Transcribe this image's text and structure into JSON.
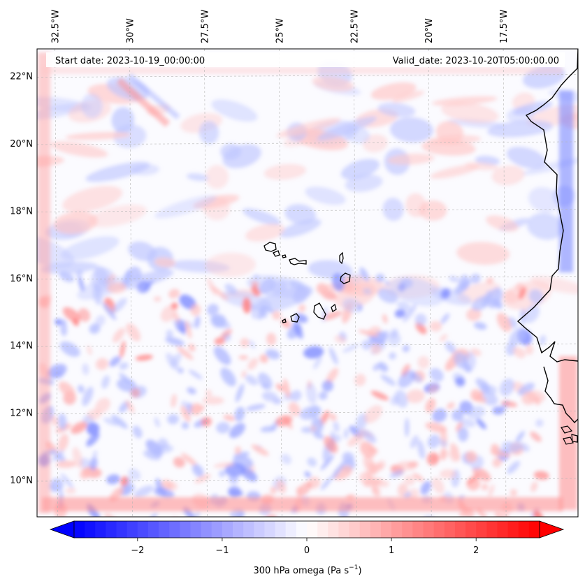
{
  "header": {
    "start_date": "Start date: 2023-10-19_00:00:00",
    "valid_date": "Valid_date: 2023-10-20T05:00:00.00"
  },
  "map": {
    "lon_range": [
      -33.1,
      -15.0
    ],
    "lat_range": [
      8.9,
      22.8
    ],
    "lon_ticks": [
      {
        "value": -32.5,
        "label": "32.5°W"
      },
      {
        "value": -30.0,
        "label": "30°W"
      },
      {
        "value": -27.5,
        "label": "27.5°W"
      },
      {
        "value": -25.0,
        "label": "25°W"
      },
      {
        "value": -22.5,
        "label": "22.5°W"
      },
      {
        "value": -20.0,
        "label": "20°W"
      },
      {
        "value": -17.5,
        "label": "17.5°W"
      }
    ],
    "lat_ticks": [
      {
        "value": 22,
        "label": "22°N"
      },
      {
        "value": 20,
        "label": "20°N"
      },
      {
        "value": 18,
        "label": "18°N"
      },
      {
        "value": 16,
        "label": "16°N"
      },
      {
        "value": 14,
        "label": "14°N"
      },
      {
        "value": 12,
        "label": "12°N"
      },
      {
        "value": 10,
        "label": "10°N"
      }
    ],
    "gridlines": true,
    "coastline_color": "#000000"
  },
  "colorbar": {
    "label": "300 hPa omega (Pa s",
    "label_superscript": "−1",
    "label_close": ")",
    "range": [
      -2.75,
      2.75
    ],
    "extend": "both",
    "cmap": "bwr",
    "low_color": "#0000ff",
    "mid_color": "#ffffff",
    "high_color": "#ff0000",
    "ticks": [
      {
        "value": -2,
        "label": "−2"
      },
      {
        "value": -1,
        "label": "−1"
      },
      {
        "value": 0,
        "label": "0"
      },
      {
        "value": 1,
        "label": "1"
      },
      {
        "value": 2,
        "label": "2"
      }
    ]
  }
}
